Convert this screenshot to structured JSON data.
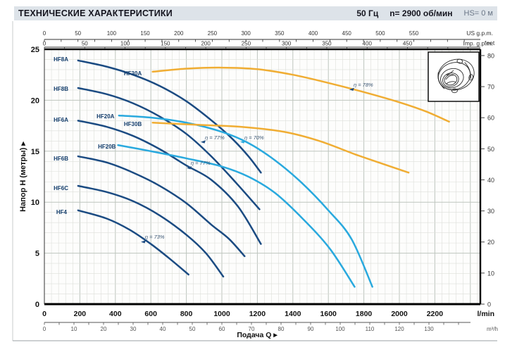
{
  "header": {
    "title": "ТЕХНИЧЕСКИЕ ХАРАКТЕРИСТИКИ",
    "frequency": "50 Гц",
    "speed": "n= 2900 об/мин",
    "suction_head": "HS= 0 м"
  },
  "colors": {
    "navy": "#1b4b82",
    "cyan": "#29a9de",
    "yellow": "#f0ad33",
    "label_navy": "#123c6b",
    "eff": "#3a5674",
    "grid_minor": "#dddfda",
    "grid_major": "#bec5be",
    "frame": "#000000"
  },
  "icons": {
    "impeller": "pump-impeller-line-drawing",
    "axis_arrow": "▸"
  },
  "chart_data": {
    "type": "line",
    "x_axis_primary": {
      "unit": "l/min",
      "ticks": [
        0,
        200,
        400,
        600,
        800,
        1000,
        1200,
        1400,
        1600,
        1800,
        2000,
        2200
      ],
      "range": [
        0,
        2456
      ]
    },
    "x_axis_secondary": {
      "unit": "m³/h",
      "ticks": [
        0,
        10,
        20,
        30,
        40,
        50,
        60,
        70,
        80,
        90,
        100,
        110,
        120,
        130
      ]
    },
    "x_axis_title": "Подача Q  ▸",
    "y_axis_left": {
      "title": "Напор Н (метры)  ▸",
      "ticks": [
        0,
        5,
        10,
        15,
        20,
        25
      ],
      "range": [
        0,
        25
      ]
    },
    "y_axis_right": {
      "unit": "feet",
      "ticks": [
        0,
        10,
        20,
        30,
        40,
        50,
        60,
        70,
        80
      ]
    },
    "top_axis_us": {
      "unit": "US g.p.m.",
      "ticks": [
        0,
        50,
        100,
        150,
        200,
        250,
        300,
        350,
        400,
        450,
        500,
        550
      ]
    },
    "top_axis_imp": {
      "unit": "Imp. g.p.m.",
      "ticks": [
        0,
        50,
        100,
        150,
        200,
        250,
        300,
        350,
        400,
        450
      ]
    },
    "grid": "minor 40 l/min × 1 m, major 200 l/min × 5 m",
    "series": [
      {
        "name": "HF8A",
        "color": "navy",
        "label_at": [
          52,
          23.83
        ],
        "points": [
          [
            190,
            23.9
          ],
          [
            350,
            23.3
          ],
          [
            500,
            22.5
          ],
          [
            650,
            21.4
          ],
          [
            800,
            19.9
          ],
          [
            950,
            17.9
          ],
          [
            1060,
            16.2
          ],
          [
            1150,
            14.5
          ],
          [
            1220,
            12.9
          ]
        ]
      },
      {
        "name": "HF8B",
        "color": "navy",
        "label_at": [
          52,
          20.93
        ],
        "points": [
          [
            190,
            21.2
          ],
          [
            350,
            20.6
          ],
          [
            500,
            19.7
          ],
          [
            650,
            18.4
          ],
          [
            800,
            16.7
          ],
          [
            940,
            14.5
          ],
          [
            1080,
            11.9
          ],
          [
            1212,
            9.3
          ]
        ]
      },
      {
        "name": "HF6A",
        "color": "navy",
        "label_at": [
          52,
          17.89
        ],
        "points": [
          [
            190,
            18.0
          ],
          [
            350,
            17.4
          ],
          [
            500,
            16.5
          ],
          [
            650,
            15.2
          ],
          [
            800,
            13.6
          ],
          [
            940,
            12.2
          ],
          [
            1090,
            9.6
          ],
          [
            1220,
            5.9
          ]
        ]
      },
      {
        "name": "HF6B",
        "color": "navy",
        "label_at": [
          52,
          14.09
        ],
        "points": [
          [
            190,
            14.5
          ],
          [
            350,
            13.9
          ],
          [
            500,
            12.9
          ],
          [
            650,
            11.6
          ],
          [
            800,
            9.9
          ],
          [
            940,
            7.8
          ],
          [
            1040,
            6.4
          ],
          [
            1128,
            4.7
          ]
        ]
      },
      {
        "name": "HF6C",
        "color": "navy",
        "label_at": [
          52,
          11.19
        ],
        "points": [
          [
            190,
            11.6
          ],
          [
            350,
            11.0
          ],
          [
            500,
            10.1
          ],
          [
            650,
            8.7
          ],
          [
            800,
            6.8
          ],
          [
            910,
            5.0
          ],
          [
            1008,
            2.7
          ]
        ]
      },
      {
        "name": "HF4",
        "color": "navy",
        "label_at": [
          67,
          8.84
        ],
        "points": [
          [
            190,
            9.2
          ],
          [
            350,
            8.4
          ],
          [
            480,
            7.3
          ],
          [
            600,
            5.9
          ],
          [
            710,
            4.4
          ],
          [
            812,
            2.9
          ]
        ]
      },
      {
        "name": "HF20A",
        "color": "cyan",
        "label_at": [
          294,
          18.23
        ],
        "points": [
          [
            420,
            18.5
          ],
          [
            600,
            18.3
          ],
          [
            800,
            17.8
          ],
          [
            1000,
            16.9
          ],
          [
            1150,
            15.8
          ],
          [
            1300,
            14.1
          ],
          [
            1450,
            11.9
          ],
          [
            1600,
            9.2
          ],
          [
            1730,
            6.4
          ],
          [
            1848,
            1.7
          ]
        ]
      },
      {
        "name": "HF20B",
        "color": "cyan",
        "label_at": [
          302,
          15.26
        ],
        "points": [
          [
            415,
            15.6
          ],
          [
            600,
            15.0
          ],
          [
            800,
            14.3
          ],
          [
            1000,
            13.5
          ],
          [
            1150,
            12.5
          ],
          [
            1300,
            10.9
          ],
          [
            1460,
            8.3
          ],
          [
            1610,
            5.4
          ],
          [
            1748,
            1.7
          ]
        ]
      },
      {
        "name": "HF30A",
        "color": "yellow",
        "label_at": [
          448,
          22.44
        ],
        "points": [
          [
            610,
            22.8
          ],
          [
            800,
            23.1
          ],
          [
            1000,
            23.2
          ],
          [
            1200,
            23.05
          ],
          [
            1400,
            22.5
          ],
          [
            1600,
            21.7
          ],
          [
            1800,
            20.8
          ],
          [
            2000,
            19.8
          ],
          [
            2150,
            18.9
          ],
          [
            2280,
            17.9
          ]
        ]
      },
      {
        "name": "HF30B",
        "color": "yellow",
        "label_at": [
          448,
          17.47
        ],
        "points": [
          [
            610,
            17.8
          ],
          [
            850,
            17.6
          ],
          [
            1100,
            17.4
          ],
          [
            1350,
            16.9
          ],
          [
            1550,
            16.0
          ],
          [
            1750,
            14.7
          ],
          [
            1900,
            13.8
          ],
          [
            2052,
            12.9
          ]
        ]
      }
    ],
    "efficiency_labels": [
      {
        "text": "η = 78%",
        "marker_color": "navy",
        "text_at": [
          1742,
          21.34
        ],
        "marker_at": [
          1718,
          21.05
        ]
      },
      {
        "text": "η = 77%",
        "marker_color": "navy",
        "text_at": [
          905,
          16.16
        ],
        "marker_at": [
          881,
          15.9
        ]
      },
      {
        "text": "η = 70%",
        "marker_color": "cyan",
        "text_at": [
          1127,
          16.16
        ],
        "marker_at": [
          1103,
          15.9
        ]
      },
      {
        "text": "η = 77%",
        "marker_color": "navy",
        "text_at": [
          825,
          13.67
        ],
        "marker_at": [
          802,
          13.35
        ]
      },
      {
        "text": "η = 73%",
        "marker_color": "navy",
        "text_at": [
          567,
          6.42
        ],
        "marker_at": [
          544,
          6.1
        ]
      }
    ]
  }
}
